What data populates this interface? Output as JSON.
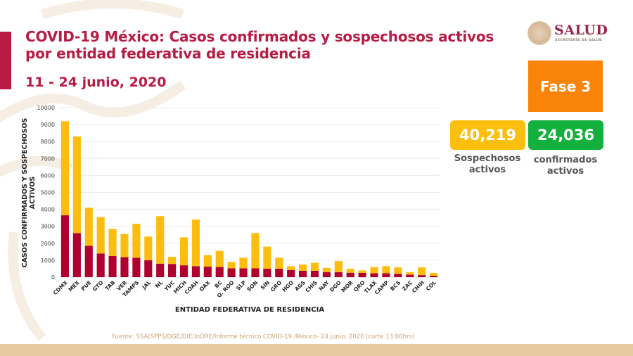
{
  "header": {
    "title": "COVID-19 México: Casos confirmados y sospechosos activos por entidad federativa de residencia",
    "date_range": "11 - 24 junio, 2020"
  },
  "logo": {
    "name": "SALUD",
    "subtitle": "SECRETARÍA DE SALUD"
  },
  "phase": {
    "label": "Fase 3",
    "color": "#f98407"
  },
  "kpis": {
    "suspected": {
      "value": "40,219",
      "label": "Sospechosos activos",
      "color": "#fcbf0d"
    },
    "confirmed": {
      "value": "24,036",
      "label": "confirmados activos",
      "color": "#14b03d"
    }
  },
  "source": "Fuente: SSA(SPPS/DGE/DIE/InDRE/Informe técnico.COVID-19 /México- 24 junio, 2020 (corte 13:00hrs)",
  "chart_data": {
    "type": "bar",
    "stacked": true,
    "title": "",
    "xlabel": "ENTIDAD FEDERATIVA DE RESIDENCIA",
    "ylabel": "CASOS CONFIRMADOS Y SOSPECHOSOS ACTIVOS",
    "ylim": [
      0,
      10000
    ],
    "yticks": [
      0,
      1000,
      2000,
      3000,
      4000,
      5000,
      6000,
      7000,
      8000,
      9000,
      10000
    ],
    "grid": true,
    "legend": "none",
    "categories": [
      "CDMX",
      "MEX",
      "PUE",
      "GTO",
      "TAB",
      "VER",
      "TAMPS",
      "JAL",
      "NL",
      "YUC",
      "MICH",
      "COAH",
      "OAX",
      "BC",
      "Q. ROO",
      "SLP",
      "SON",
      "SIN",
      "GRO",
      "HGO",
      "AGS",
      "CHIS",
      "NAY",
      "DGO",
      "MOR",
      "QRO",
      "TLAX",
      "CAMP",
      "BCS",
      "ZAC",
      "CHIH",
      "COL"
    ],
    "series": [
      {
        "name": "Confirmados activos",
        "color": "#b0002e",
        "values": [
          3650,
          2600,
          1850,
          1400,
          1250,
          1180,
          1150,
          1000,
          800,
          780,
          700,
          650,
          620,
          600,
          520,
          520,
          520,
          500,
          500,
          420,
          380,
          380,
          300,
          300,
          260,
          250,
          230,
          230,
          200,
          150,
          120,
          80
        ]
      },
      {
        "name": "Sospechosos activos",
        "color": "#fdbd0f",
        "values": [
          5550,
          5700,
          2250,
          2150,
          1600,
          1370,
          2000,
          1400,
          2800,
          420,
          1650,
          2750,
          680,
          950,
          380,
          630,
          2080,
          1300,
          650,
          230,
          370,
          470,
          250,
          650,
          240,
          150,
          370,
          420,
          380,
          150,
          460,
          170
        ]
      }
    ]
  }
}
